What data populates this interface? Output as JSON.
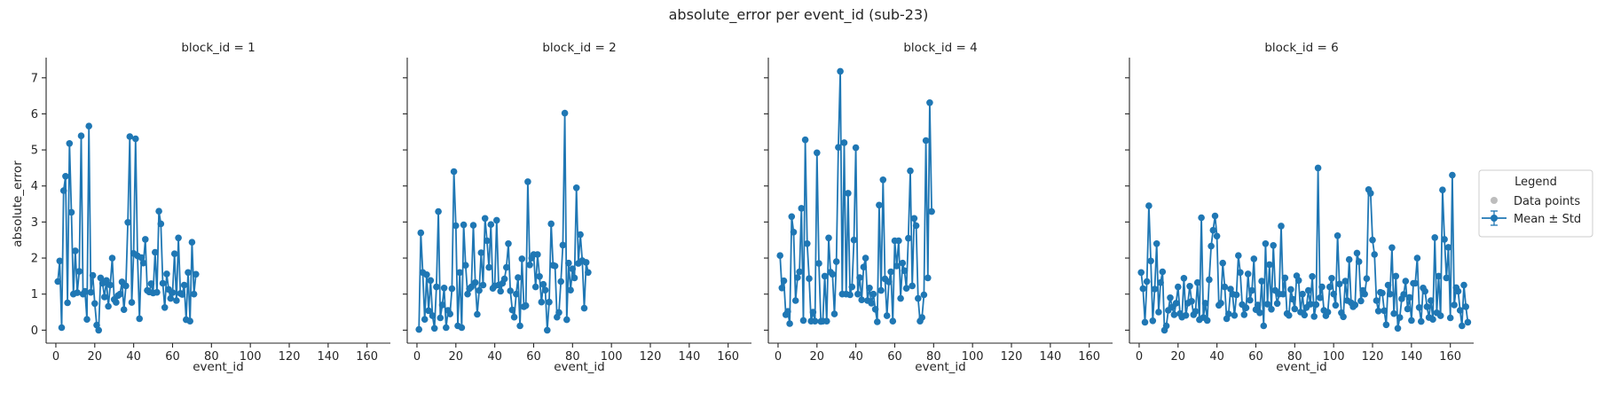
{
  "chart_data": {
    "type": "line",
    "title": "absolute_error per event_id (sub-23)",
    "xlabel": "event_id",
    "ylabel": "absolute_error",
    "xlim": [
      -5,
      172
    ],
    "ylim": [
      -0.36,
      7.56
    ],
    "xticks": [
      0,
      20,
      40,
      60,
      80,
      100,
      120,
      140,
      160
    ],
    "yticks": [
      0,
      1,
      2,
      3,
      4,
      5,
      6,
      7
    ],
    "grid": false,
    "color": "#1f77b4",
    "legend": {
      "title": "Legend",
      "placement": "outside-right",
      "entries": [
        {
          "label": "Data points",
          "color": "#bdbdbd",
          "marker": "dot"
        },
        {
          "label": "Mean ± Std",
          "color": "#1f77b4",
          "marker": "line-dot-errorbar"
        }
      ]
    },
    "panels": [
      {
        "title": "block_id = 1",
        "y": [
          1.35,
          1.92,
          0.07,
          3.87,
          4.27,
          0.76,
          5.18,
          3.27,
          1.0,
          2.2,
          1.04,
          1.63,
          5.39,
          1.0,
          1.08,
          0.3,
          5.66,
          1.05,
          1.52,
          0.74,
          0.14,
          0.0,
          1.45,
          1.3,
          0.92,
          1.38,
          0.66,
          1.25,
          2.0,
          0.85,
          0.77,
          0.96,
          1.0,
          1.34,
          0.57,
          1.23,
          2.99,
          5.37,
          0.77,
          2.13,
          5.31,
          2.06,
          0.32,
          2.01,
          1.86,
          2.52,
          1.1,
          1.06,
          1.29,
          1.03,
          2.16,
          1.05,
          3.3,
          2.95,
          1.3,
          0.63,
          1.56,
          1.13,
          0.88,
          1.04,
          2.12,
          0.82,
          2.56,
          1.02,
          0.99,
          1.25,
          0.29,
          1.6,
          0.25,
          2.44,
          1.0,
          1.55
        ]
      },
      {
        "title": "block_id = 2",
        "y": [
          0.02,
          2.7,
          1.6,
          0.3,
          1.54,
          0.54,
          1.38,
          0.4,
          0.05,
          1.2,
          3.29,
          0.34,
          0.7,
          1.17,
          0.07,
          0.55,
          0.45,
          1.15,
          4.4,
          2.9,
          0.12,
          1.6,
          0.07,
          2.92,
          1.8,
          1.0,
          1.15,
          1.2,
          2.91,
          1.32,
          0.44,
          1.1,
          2.15,
          1.25,
          3.1,
          2.48,
          1.74,
          2.93,
          1.16,
          1.23,
          3.05,
          1.25,
          1.08,
          1.3,
          1.42,
          1.74,
          2.4,
          1.09,
          0.56,
          0.36,
          1.0,
          1.46,
          0.12,
          1.98,
          0.65,
          0.68,
          4.12,
          1.81,
          2.0,
          2.1,
          1.2,
          2.1,
          1.49,
          0.78,
          1.27,
          1.11,
          0.0,
          0.78,
          2.95,
          1.8,
          1.78,
          0.36,
          0.49,
          1.35,
          2.36,
          6.02,
          0.29,
          1.86,
          1.11,
          1.7,
          1.45,
          3.95,
          1.85,
          2.65,
          1.93,
          0.61,
          1.88,
          1.6
        ]
      },
      {
        "title": "block_id = 4",
        "y": [
          2.07,
          1.17,
          1.37,
          0.43,
          0.52,
          0.18,
          3.15,
          2.72,
          0.82,
          1.46,
          1.62,
          3.38,
          0.27,
          5.28,
          2.4,
          1.43,
          0.25,
          0.5,
          0.25,
          4.92,
          1.85,
          0.24,
          0.25,
          1.5,
          0.25,
          2.56,
          1.61,
          1.55,
          0.45,
          1.9,
          5.07,
          7.18,
          1.0,
          5.2,
          1.0,
          3.8,
          0.98,
          1.2,
          2.5,
          5.06,
          1.0,
          1.46,
          0.84,
          1.75,
          2.0,
          0.82,
          1.17,
          0.75,
          1.0,
          0.58,
          0.23,
          3.47,
          1.1,
          4.17,
          1.42,
          0.4,
          1.34,
          1.62,
          0.25,
          2.48,
          1.78,
          2.48,
          0.88,
          1.86,
          1.65,
          1.16,
          2.55,
          4.42,
          1.23,
          3.1,
          2.9,
          0.88,
          0.25,
          0.35,
          0.98,
          5.26,
          1.45,
          6.31,
          3.29
        ]
      },
      {
        "title": "block_id = 6",
        "y": [
          1.6,
          1.15,
          0.22,
          1.35,
          3.45,
          1.92,
          0.26,
          1.14,
          2.4,
          0.5,
          1.32,
          1.62,
          0.0,
          0.12,
          0.55,
          0.9,
          0.64,
          0.43,
          0.75,
          1.2,
          0.46,
          0.36,
          1.44,
          0.41,
          0.75,
          1.22,
          0.8,
          0.43,
          0.52,
          1.32,
          0.29,
          3.12,
          0.35,
          0.75,
          0.27,
          1.4,
          2.33,
          2.77,
          3.17,
          2.61,
          0.69,
          0.75,
          1.86,
          1.2,
          0.32,
          0.45,
          1.14,
          1.0,
          0.41,
          0.98,
          2.07,
          1.6,
          0.71,
          0.43,
          0.62,
          1.56,
          0.83,
          1.1,
          1.98,
          0.57,
          0.7,
          0.48,
          1.36,
          0.12,
          2.4,
          0.72,
          1.82,
          0.58,
          2.35,
          1.1,
          0.74,
          1.0,
          2.89,
          1.0,
          1.45,
          0.46,
          0.41,
          1.13,
          0.86,
          0.59,
          1.51,
          1.38,
          0.5,
          1.0,
          0.42,
          0.63,
          1.1,
          0.72,
          1.49,
          0.38,
          0.71,
          4.5,
          0.9,
          1.2,
          0.55,
          0.4,
          0.5,
          1.2,
          1.44,
          1.0,
          0.69,
          2.62,
          1.28,
          0.48,
          0.37,
          1.36,
          0.82,
          1.96,
          0.76,
          0.65,
          0.7,
          2.14,
          1.9,
          0.81,
          1.1,
          1.0,
          1.43,
          3.9,
          3.8,
          2.5,
          2.1,
          0.82,
          0.53,
          1.05,
          1.03,
          0.54,
          0.15,
          1.25,
          1.0,
          2.29,
          0.46,
          1.5,
          0.05,
          0.35,
          0.87,
          0.99,
          1.36,
          0.59,
          0.91,
          0.27,
          1.3,
          1.3,
          2.0,
          0.63,
          0.24,
          1.17,
          1.08,
          0.65,
          0.35,
          0.82,
          0.3,
          2.57,
          0.48,
          1.5,
          0.4,
          3.89,
          2.52,
          1.45,
          2.3,
          0.34,
          4.3,
          0.7,
          1.18,
          1.08,
          0.55,
          0.12,
          1.25,
          0.65,
          0.22
        ]
      }
    ]
  }
}
